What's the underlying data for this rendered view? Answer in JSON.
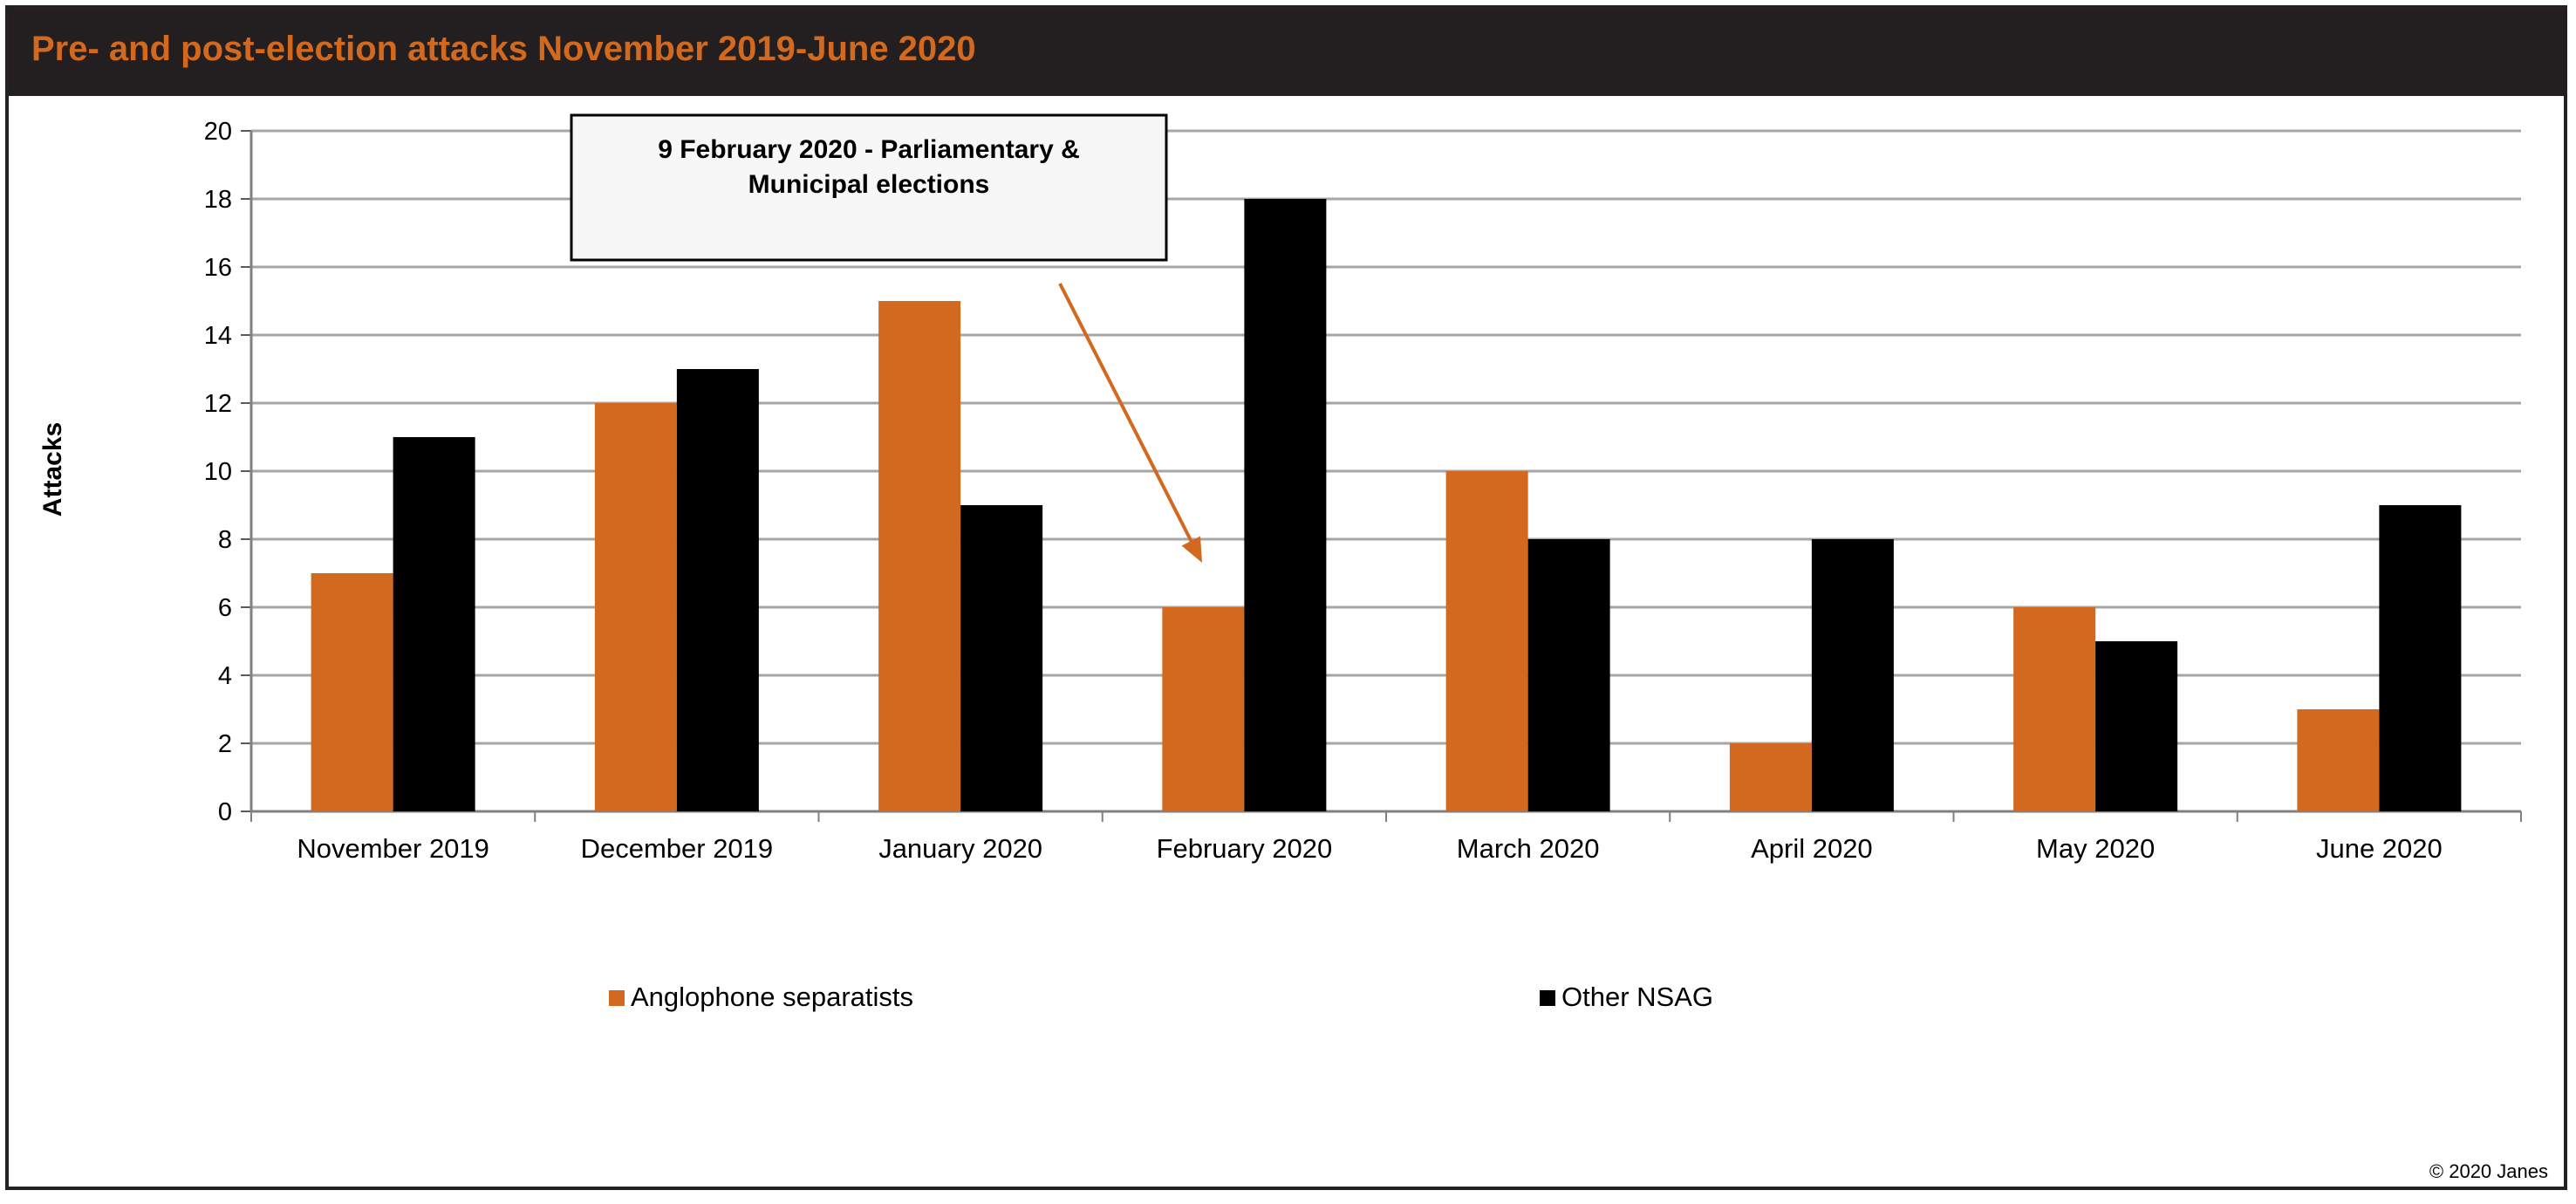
{
  "title": "Pre- and post-election attacks November 2019-June 2020",
  "copyright": "© 2020  Janes",
  "annotation": {
    "line1": "9 February 2020  - Parliamentary  &",
    "line2": "Municipal elections",
    "points_to": "February 2020"
  },
  "colors": {
    "header_bg": "#231f20",
    "title": "#d2691e",
    "anglophone": "#d2691e",
    "other": "#000000",
    "grid": "#a6a6a6"
  },
  "chart_data": {
    "type": "bar",
    "title": "Pre- and post-election attacks November 2019-June 2020",
    "xlabel": "",
    "ylabel": "Attacks",
    "ylim": [
      0,
      20
    ],
    "yticks": [
      0,
      2,
      4,
      6,
      8,
      10,
      12,
      14,
      16,
      18,
      20
    ],
    "grid": true,
    "legend_position": "bottom",
    "categories": [
      "November 2019",
      "December 2019",
      "January 2020",
      "February 2020",
      "March 2020",
      "April 2020",
      "May 2020",
      "June 2020"
    ],
    "series": [
      {
        "name": "Anglophone separatists",
        "values": [
          7,
          12,
          15,
          6,
          10,
          2,
          6,
          3
        ]
      },
      {
        "name": "Other NSAG",
        "values": [
          11,
          13,
          9,
          18,
          8,
          8,
          5,
          9
        ]
      }
    ]
  }
}
